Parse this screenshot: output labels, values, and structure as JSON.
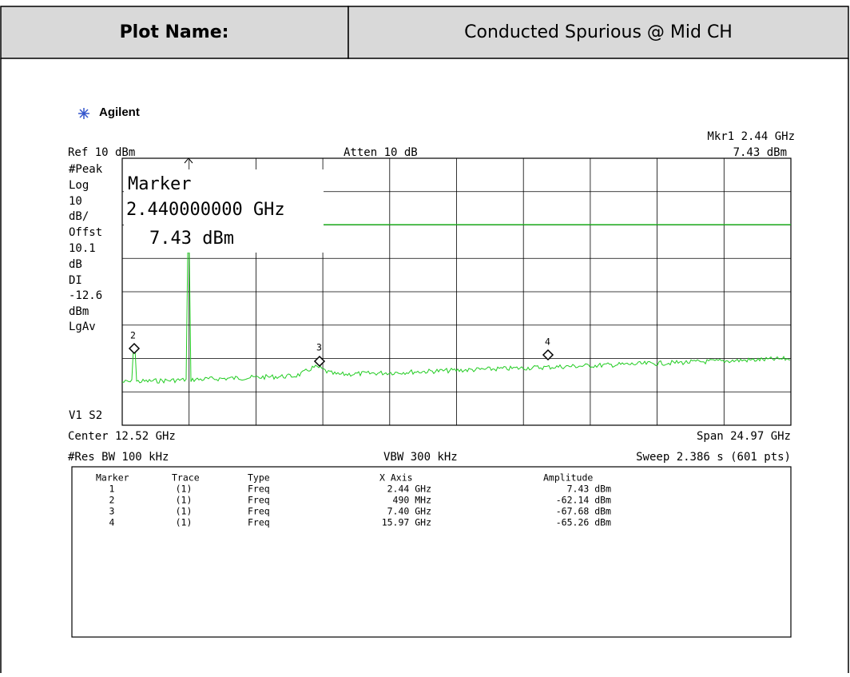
{
  "header": {
    "label": "Plot Name:",
    "value": "Conducted Spurious @ Mid CH"
  },
  "analyzer": {
    "brand": "Agilent",
    "mkr_label": "Mkr1 2.44 GHz",
    "mkr_amp": "7.43 dBm",
    "ref": "Ref 10 dBm",
    "atten": "Atten 10 dB",
    "left_labels": [
      "#Peak",
      "Log",
      "10",
      "dB/",
      "Offst",
      "10.1",
      "dB",
      "DI",
      "-12.6",
      "dBm",
      "LgAv",
      "V1  S2"
    ],
    "marker_box": [
      "Marker",
      "2.440000000 GHz",
      "7.43 dBm"
    ],
    "trace_markers": [
      "2",
      "3",
      "4"
    ],
    "center": "Center 12.52 GHz",
    "span": "Span 24.97 GHz",
    "res_bw": "#Res BW 100 kHz",
    "vbw": "VBW 300 kHz",
    "sweep": "Sweep 2.386 s (601 pts)"
  },
  "table": {
    "columns": [
      "Marker",
      "Trace",
      "Type",
      "X Axis",
      "Amplitude"
    ],
    "rows": [
      [
        "1",
        "(1)",
        "Freq",
        "2.44 GHz",
        "7.43 dBm"
      ],
      [
        "2",
        "(1)",
        "Freq",
        "490 MHz",
        "-62.14 dBm"
      ],
      [
        "3",
        "(1)",
        "Freq",
        "7.40 GHz",
        "-67.68 dBm"
      ],
      [
        "4",
        "(1)",
        "Freq",
        "15.97 GHz",
        "-65.26 dBm"
      ]
    ]
  }
}
